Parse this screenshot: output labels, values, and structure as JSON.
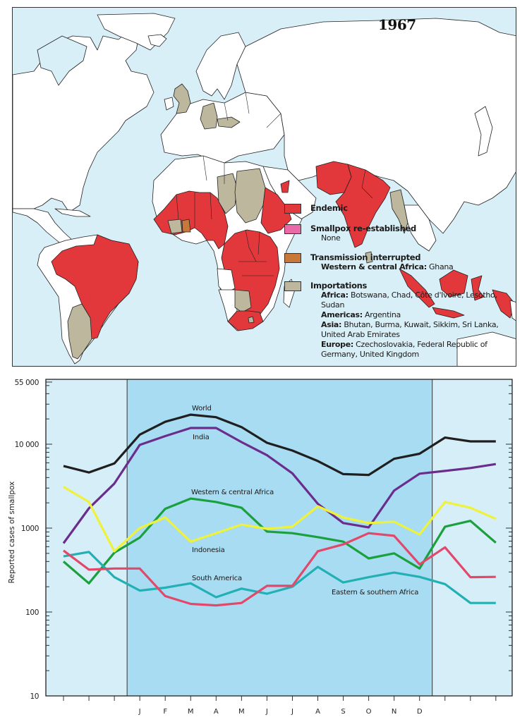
{
  "map": {
    "year": "1967",
    "colors": {
      "ocean": "#d9eff7",
      "no_cases": "#ffffff",
      "endemic": "#e2383b",
      "re_established": "#e96aa6",
      "transmission_interrupted": "#c8793a",
      "importations": "#bdb79d"
    },
    "legend": {
      "endemic": {
        "title": "Endemic"
      },
      "re_established": {
        "title": "Smallpox re-established",
        "lines": [
          "None"
        ]
      },
      "transmission_interrupted": {
        "title": "Transmission interrupted",
        "region": "Western & central Africa:",
        "countries": "Ghana"
      },
      "importations": {
        "title": "Importations",
        "africa_label": "Africa:",
        "africa_1": "Botswana, Chad, Côte d'Ivoire, Lesotho,",
        "africa_2": "Sudan",
        "americas_label": "Americas:",
        "americas": "Argentina",
        "asia_label": "Asia:",
        "asia_1": "Bhutan, Burma, Kuwait, Sikkim, Sri Lanka,",
        "asia_2": "United Arab Emirates",
        "europe_label": "Europe:",
        "europe_1": "Czechoslovakia, Federal Republic of",
        "europe_2": "Germany, United Kingdom"
      }
    }
  },
  "chart_data": {
    "type": "line",
    "title": "",
    "xlabel": "",
    "ylabel": "Reported cases of smallpox",
    "yscale": "log",
    "ylim": [
      10,
      55000
    ],
    "yticks": [
      10,
      100,
      1000,
      10000,
      55000
    ],
    "ytick_labels": [
      "10",
      "100",
      "1000",
      "10 000",
      "55 000"
    ],
    "x": [
      "",
      "",
      "",
      "J",
      "F",
      "M",
      "A",
      "M",
      "J",
      "J",
      "A",
      "S",
      "O",
      "N",
      "D",
      "",
      "",
      ""
    ],
    "highlight_range": [
      "J",
      "D"
    ],
    "colors": {
      "background": "#d5eef8",
      "highlight": "#a8dcf2"
    },
    "series": [
      {
        "name": "World",
        "color": "#1f1f1f",
        "values": [
          5500,
          4600,
          5900,
          13000,
          18500,
          22500,
          21000,
          16000,
          10400,
          8400,
          6300,
          4400,
          4300,
          6700,
          7700,
          12000,
          10800,
          10800
        ]
      },
      {
        "name": "India",
        "color": "#6b2d8c",
        "values": [
          660,
          1720,
          3400,
          9800,
          12500,
          15600,
          15600,
          10600,
          7400,
          4500,
          1950,
          1150,
          1020,
          2800,
          4450,
          4800,
          5200,
          5800
        ]
      },
      {
        "name": "Western & central Africa",
        "color": "#1aa03c",
        "values": [
          400,
          220,
          510,
          770,
          1700,
          2250,
          2050,
          1750,
          910,
          870,
          780,
          690,
          435,
          500,
          330,
          1040,
          1220,
          670
        ]
      },
      {
        "name": "Indonesia",
        "color": "#eef23a",
        "values": [
          3100,
          2050,
          530,
          1000,
          1340,
          690,
          870,
          1100,
          980,
          1040,
          1820,
          1340,
          1150,
          1190,
          840,
          2050,
          1750,
          1290
        ]
      },
      {
        "name": "South America",
        "color": "#22b0b4",
        "values": [
          460,
          520,
          260,
          180,
          195,
          220,
          150,
          190,
          165,
          200,
          345,
          225,
          260,
          295,
          262,
          215,
          128,
          128
        ]
      },
      {
        "name": "Eastern & southern Africa",
        "color": "#e2486a",
        "values": [
          540,
          320,
          330,
          330,
          155,
          125,
          120,
          128,
          205,
          205,
          530,
          640,
          870,
          810,
          370,
          590,
          260,
          262
        ]
      }
    ]
  }
}
